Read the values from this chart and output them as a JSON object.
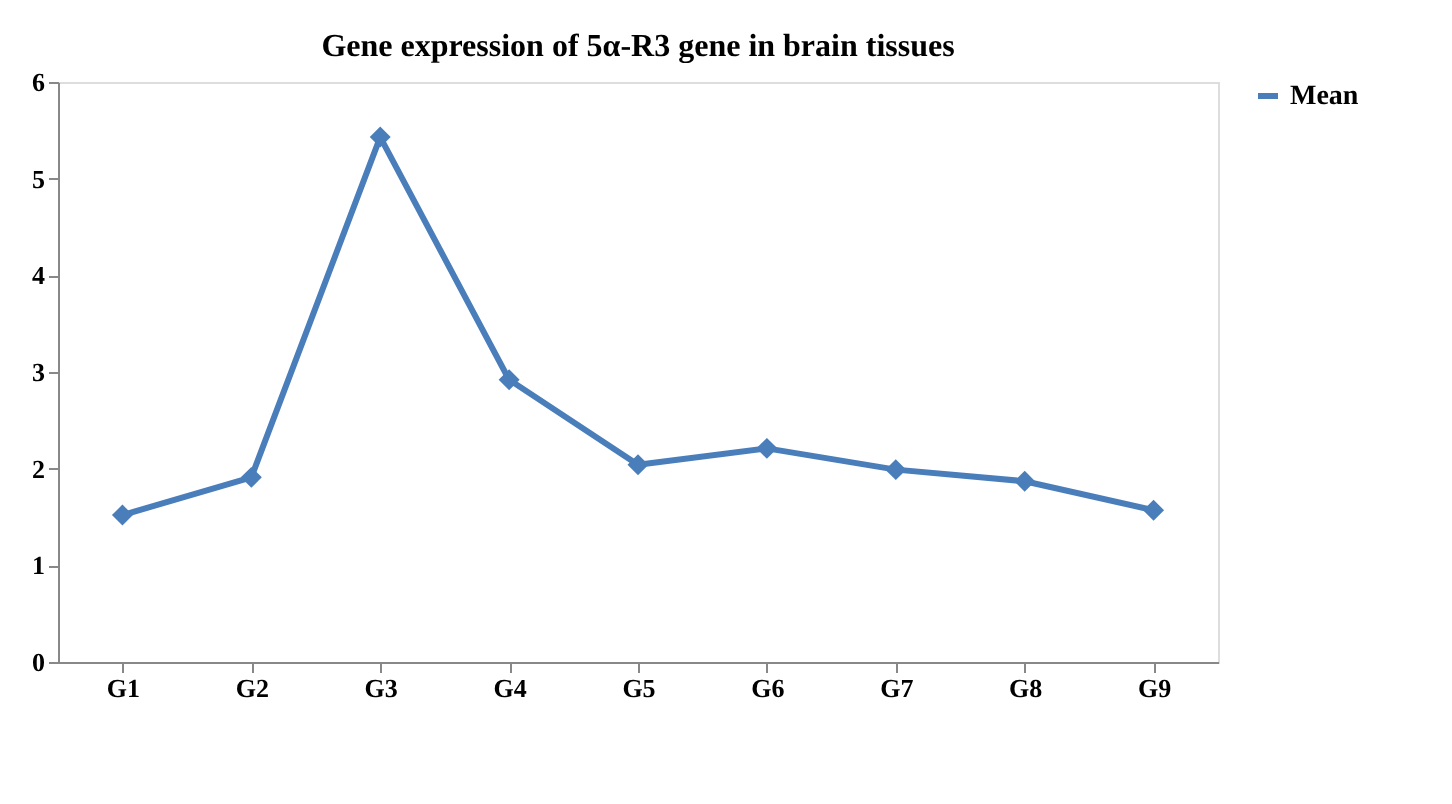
{
  "chart_data": {
    "type": "line",
    "title": "Gene expression of 5α-R3 gene in brain tissues",
    "categories": [
      "G1",
      "G2",
      "G3",
      "G4",
      "G5",
      "G6",
      "G7",
      "G8",
      "G9"
    ],
    "series": [
      {
        "name": "Mean",
        "color": "#4a7ebb",
        "values": [
          1.52,
          1.91,
          5.43,
          2.92,
          2.04,
          2.21,
          1.99,
          1.87,
          1.57
        ]
      }
    ],
    "ylim": [
      0,
      6
    ],
    "yticks": [
      0,
      1,
      2,
      3,
      4,
      5,
      6
    ],
    "grid": false,
    "legend": "right",
    "marker": "diamond",
    "line_style": "solid"
  }
}
